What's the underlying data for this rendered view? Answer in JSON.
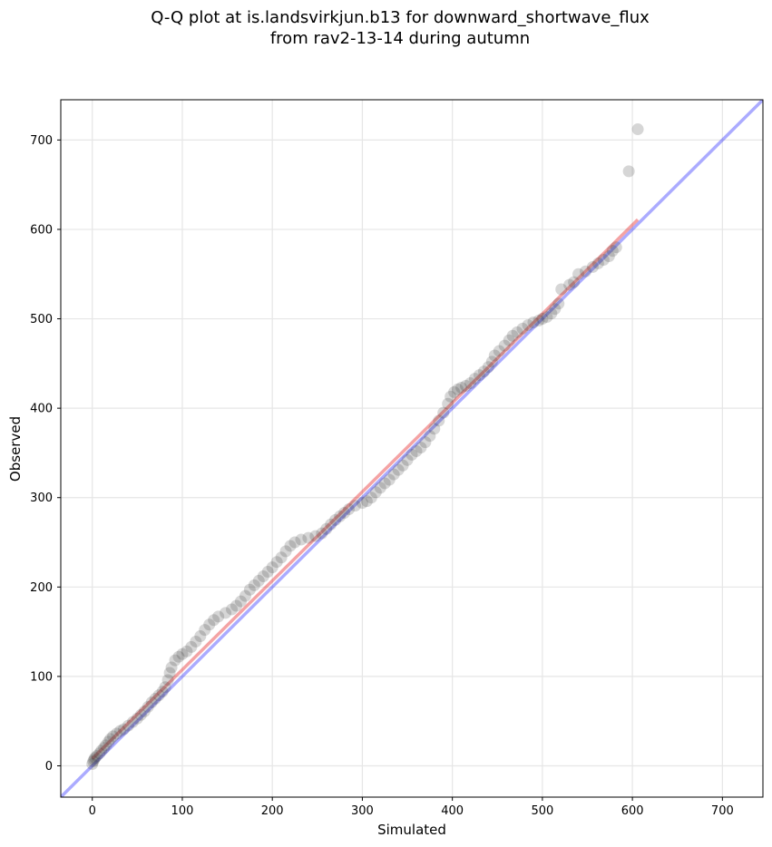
{
  "chart_data": {
    "type": "scatter",
    "title_lines": [
      "Q-Q plot at is.landsvirkjun.b13 for downward_shortwave_flux",
      "from rav2-13-14 during autumn"
    ],
    "xlabel": "Simulated",
    "ylabel": "Observed",
    "xlim": [
      -35,
      745
    ],
    "ylim": [
      -35,
      745
    ],
    "xticks": [
      0,
      100,
      200,
      300,
      400,
      500,
      600,
      700
    ],
    "yticks": [
      0,
      100,
      200,
      300,
      400,
      500,
      600,
      700
    ],
    "grid": true,
    "point_color": "#333333",
    "identity_line": {
      "color": "#0000ff",
      "from": [
        -35,
        -35
      ],
      "to": [
        745,
        745
      ]
    },
    "fit_line": {
      "color": "#e31a1c",
      "from": [
        0,
        8
      ],
      "to": [
        606,
        611
      ]
    },
    "series": [
      {
        "points": [
          [
            0,
            2
          ],
          [
            1,
            5
          ],
          [
            2,
            7
          ],
          [
            3,
            9
          ],
          [
            5,
            11
          ],
          [
            8,
            14
          ],
          [
            10,
            17
          ],
          [
            13,
            20
          ],
          [
            15,
            23
          ],
          [
            18,
            27
          ],
          [
            20,
            30
          ],
          [
            23,
            33
          ],
          [
            27,
            36
          ],
          [
            31,
            39
          ],
          [
            35,
            41
          ],
          [
            40,
            45
          ],
          [
            45,
            49
          ],
          [
            50,
            53
          ],
          [
            54,
            57
          ],
          [
            58,
            61
          ],
          [
            62,
            66
          ],
          [
            66,
            71
          ],
          [
            70,
            75
          ],
          [
            74,
            79
          ],
          [
            78,
            83
          ],
          [
            81,
            88
          ],
          [
            84,
            96
          ],
          [
            86,
            104
          ],
          [
            88,
            110
          ],
          [
            92,
            118
          ],
          [
            96,
            122
          ],
          [
            100,
            125
          ],
          [
            105,
            128
          ],
          [
            110,
            133
          ],
          [
            115,
            139
          ],
          [
            120,
            145
          ],
          [
            125,
            152
          ],
          [
            130,
            158
          ],
          [
            135,
            163
          ],
          [
            140,
            167
          ],
          [
            148,
            171
          ],
          [
            155,
            175
          ],
          [
            160,
            179
          ],
          [
            165,
            184
          ],
          [
            170,
            190
          ],
          [
            175,
            197
          ],
          [
            180,
            202
          ],
          [
            185,
            207
          ],
          [
            190,
            212
          ],
          [
            195,
            217
          ],
          [
            200,
            222
          ],
          [
            205,
            228
          ],
          [
            210,
            233
          ],
          [
            215,
            240
          ],
          [
            220,
            246
          ],
          [
            225,
            250
          ],
          [
            232,
            253
          ],
          [
            240,
            255
          ],
          [
            248,
            257
          ],
          [
            255,
            260
          ],
          [
            260,
            265
          ],
          [
            265,
            270
          ],
          [
            270,
            275
          ],
          [
            275,
            279
          ],
          [
            280,
            283
          ],
          [
            285,
            287
          ],
          [
            292,
            291
          ],
          [
            300,
            294
          ],
          [
            305,
            296
          ],
          [
            310,
            300
          ],
          [
            315,
            306
          ],
          [
            320,
            311
          ],
          [
            325,
            316
          ],
          [
            330,
            320
          ],
          [
            335,
            326
          ],
          [
            340,
            331
          ],
          [
            345,
            336
          ],
          [
            350,
            342
          ],
          [
            355,
            348
          ],
          [
            360,
            352
          ],
          [
            365,
            356
          ],
          [
            370,
            362
          ],
          [
            375,
            369
          ],
          [
            380,
            377
          ],
          [
            385,
            386
          ],
          [
            390,
            395
          ],
          [
            395,
            405
          ],
          [
            398,
            413
          ],
          [
            402,
            418
          ],
          [
            406,
            421
          ],
          [
            410,
            423
          ],
          [
            415,
            425
          ],
          [
            420,
            428
          ],
          [
            425,
            433
          ],
          [
            430,
            437
          ],
          [
            435,
            441
          ],
          [
            440,
            446
          ],
          [
            444,
            452
          ],
          [
            447,
            459
          ],
          [
            452,
            464
          ],
          [
            458,
            470
          ],
          [
            463,
            476
          ],
          [
            467,
            481
          ],
          [
            472,
            485
          ],
          [
            478,
            489
          ],
          [
            484,
            493
          ],
          [
            490,
            496
          ],
          [
            496,
            498
          ],
          [
            500,
            500
          ],
          [
            505,
            502
          ],
          [
            510,
            506
          ],
          [
            514,
            511
          ],
          [
            518,
            517
          ],
          [
            521,
            533
          ],
          [
            530,
            538
          ],
          [
            535,
            541
          ],
          [
            540,
            550
          ],
          [
            548,
            553
          ],
          [
            556,
            558
          ],
          [
            562,
            562
          ],
          [
            568,
            566
          ],
          [
            574,
            570
          ],
          [
            578,
            576
          ],
          [
            582,
            580
          ],
          [
            596,
            665
          ],
          [
            606,
            712
          ]
        ]
      }
    ]
  }
}
